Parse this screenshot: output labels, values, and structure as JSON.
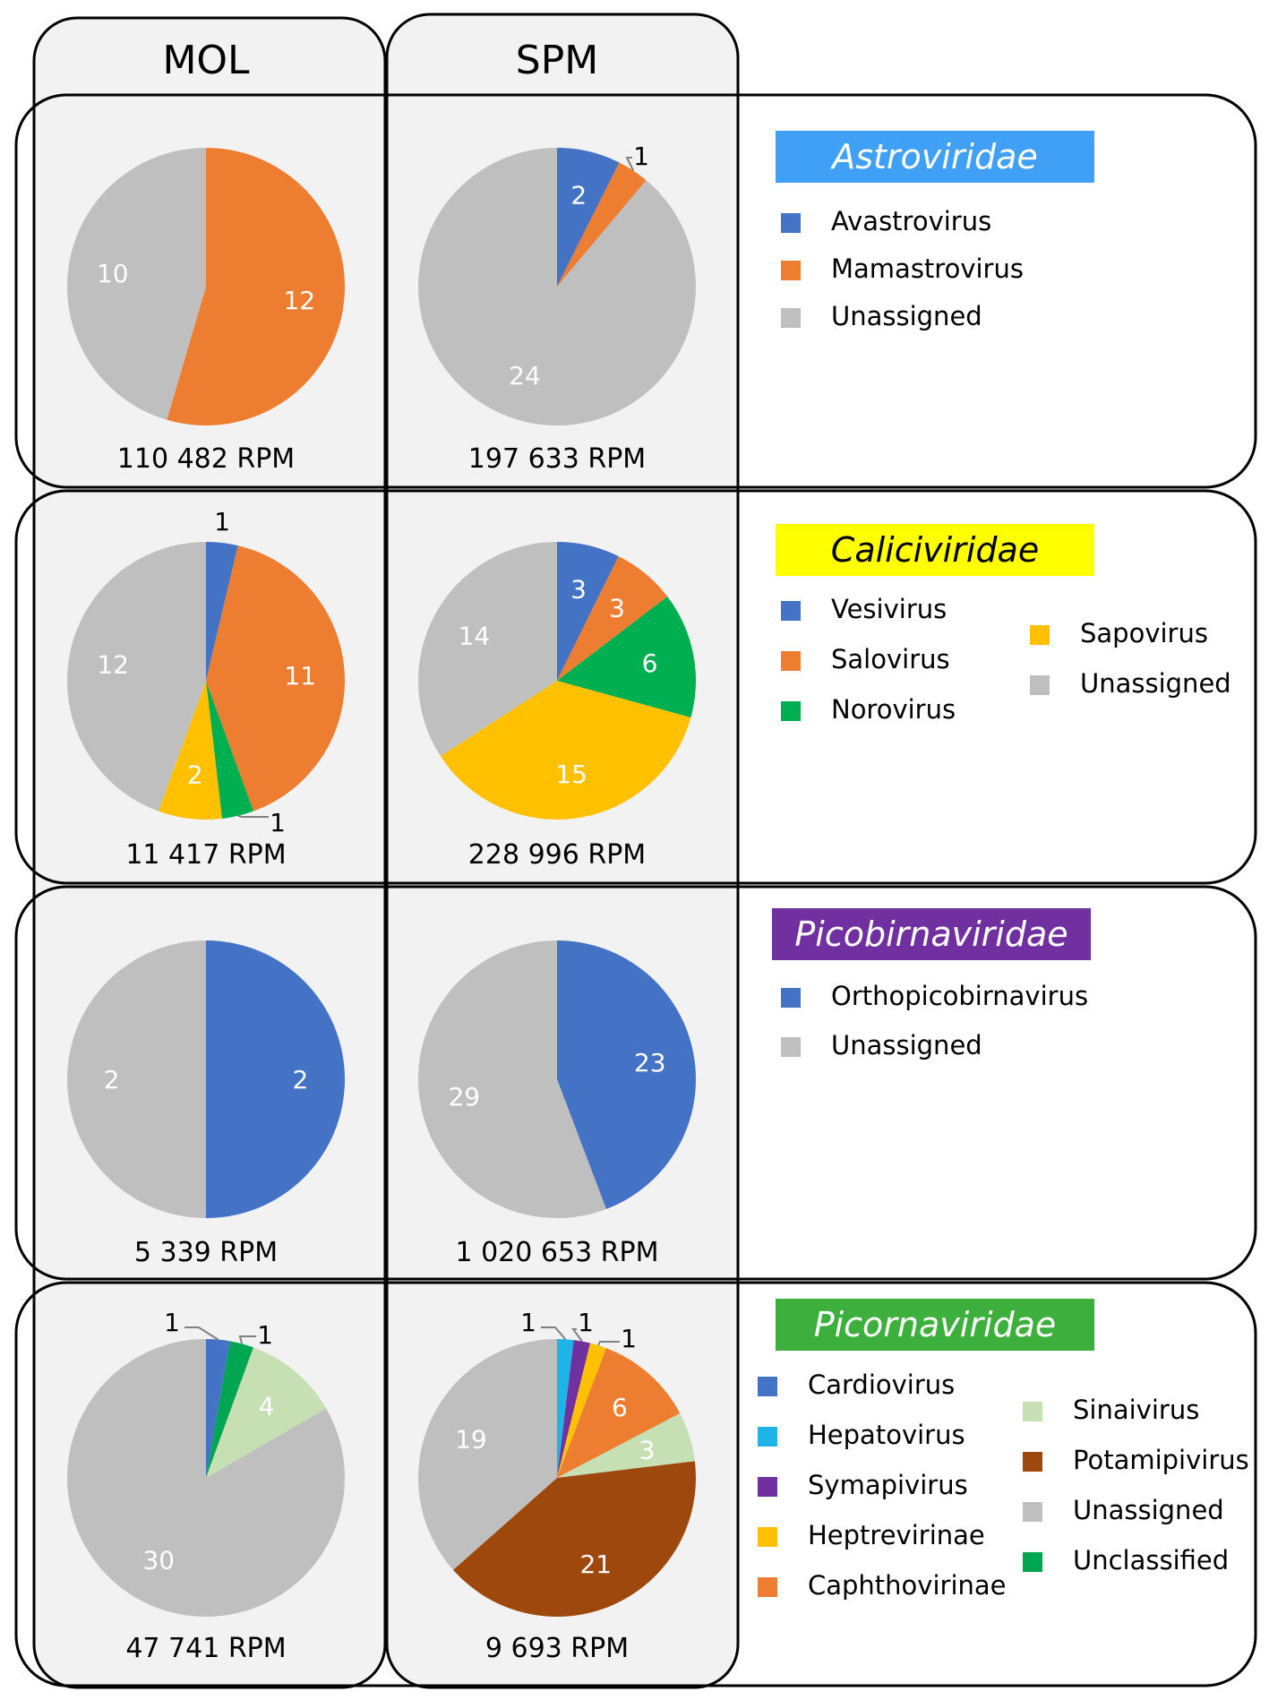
{
  "columns": [
    "MOL",
    "SPM"
  ],
  "colors": {
    "blue": "#4472C4",
    "orange": "#ED7D31",
    "gray": "#BFBFBF",
    "green": "#00B050",
    "yellow": "#FFC000",
    "cyan": "#1FB4E8",
    "purple": "#7030A0",
    "lightgreen": "#C6E0B4",
    "brown": "#9E480E",
    "darkgreen": "#00A652"
  },
  "chart_data": [
    {
      "type": "pie",
      "family": "Astroviridae",
      "family_color": "#3FA0F5",
      "family_text_color": "#ffffff",
      "legend": [
        {
          "label": "Avastrovirus",
          "color": "#4472C4"
        },
        {
          "label": "Mamastrovirus",
          "color": "#ED7D31"
        },
        {
          "label": "Unassigned",
          "color": "#BFBFBF"
        }
      ],
      "pies": [
        {
          "column": "MOL",
          "rpm": "110 482 RPM",
          "slices": [
            {
              "name": "Mamastrovirus",
              "value": 12,
              "color": "#ED7D31",
              "label": "12"
            },
            {
              "name": "Unassigned",
              "value": 10,
              "color": "#BFBFBF",
              "label": "10"
            }
          ]
        },
        {
          "column": "SPM",
          "rpm": "197 633 RPM",
          "slices": [
            {
              "name": "Avastrovirus",
              "value": 2,
              "color": "#4472C4",
              "label": "2"
            },
            {
              "name": "Mamastrovirus",
              "value": 1,
              "color": "#ED7D31",
              "label": "1",
              "outside": true
            },
            {
              "name": "Unassigned",
              "value": 24,
              "color": "#BFBFBF",
              "label": "24"
            }
          ]
        }
      ]
    },
    {
      "type": "pie",
      "family": "Caliciviridae",
      "family_color": "#FFFF00",
      "family_text_color": "#000000",
      "legend": [
        {
          "label": "Vesivirus",
          "color": "#4472C4"
        },
        {
          "label": "Salovirus",
          "color": "#ED7D31"
        },
        {
          "label": "Norovirus",
          "color": "#00B050"
        },
        {
          "label": "Sapovirus",
          "color": "#FFC000"
        },
        {
          "label": "Unassigned",
          "color": "#BFBFBF"
        }
      ],
      "pies": [
        {
          "column": "MOL",
          "rpm": "11 417 RPM",
          "slices": [
            {
              "name": "Vesivirus",
              "value": 1,
              "color": "#4472C4",
              "label": "1",
              "outside": true
            },
            {
              "name": "Salovirus",
              "value": 11,
              "color": "#ED7D31",
              "label": "11"
            },
            {
              "name": "Norovirus",
              "value": 1,
              "color": "#00B050",
              "label": "1",
              "outside": true
            },
            {
              "name": "Sapovirus",
              "value": 2,
              "color": "#FFC000",
              "label": "2"
            },
            {
              "name": "Unassigned",
              "value": 12,
              "color": "#BFBFBF",
              "label": "12"
            }
          ]
        },
        {
          "column": "SPM",
          "rpm": "228 996 RPM",
          "slices": [
            {
              "name": "Vesivirus",
              "value": 3,
              "color": "#4472C4",
              "label": "3"
            },
            {
              "name": "Salovirus",
              "value": 3,
              "color": "#ED7D31",
              "label": "3"
            },
            {
              "name": "Norovirus",
              "value": 6,
              "color": "#00B050",
              "label": "6"
            },
            {
              "name": "Sapovirus",
              "value": 15,
              "color": "#FFC000",
              "label": "15"
            },
            {
              "name": "Unassigned",
              "value": 14,
              "color": "#BFBFBF",
              "label": "14"
            }
          ]
        }
      ]
    },
    {
      "type": "pie",
      "family": "Picobirnaviridae",
      "family_color": "#7030A0",
      "family_text_color": "#ffffff",
      "legend": [
        {
          "label": "Orthopicobirnavirus",
          "color": "#4472C4"
        },
        {
          "label": "Unassigned",
          "color": "#BFBFBF"
        }
      ],
      "pies": [
        {
          "column": "MOL",
          "rpm": "5 339 RPM",
          "slices": [
            {
              "name": "Orthopicobirnavirus",
              "value": 2,
              "color": "#4472C4",
              "label": "2"
            },
            {
              "name": "Unassigned",
              "value": 2,
              "color": "#BFBFBF",
              "label": "2"
            }
          ]
        },
        {
          "column": "SPM",
          "rpm": "1 020 653 RPM",
          "slices": [
            {
              "name": "Orthopicobirnavirus",
              "value": 23,
              "color": "#4472C4",
              "label": "23"
            },
            {
              "name": "Unassigned",
              "value": 29,
              "color": "#BFBFBF",
              "label": "29"
            }
          ]
        }
      ]
    },
    {
      "type": "pie",
      "family": "Picornaviridae",
      "family_color": "#3CAF3C",
      "family_text_color": "#ffffff",
      "legend": [
        {
          "label": "Cardiovirus",
          "color": "#4472C4"
        },
        {
          "label": "Hepatovirus",
          "color": "#1FB4E8"
        },
        {
          "label": "Symapivirus",
          "color": "#7030A0"
        },
        {
          "label": "Heptrevirinae",
          "color": "#FFC000"
        },
        {
          "label": "Caphthovirinae",
          "color": "#ED7D31"
        },
        {
          "label": "Sinaivirus",
          "color": "#C6E0B4"
        },
        {
          "label": "Potamipivirus",
          "color": "#9E480E"
        },
        {
          "label": "Unassigned",
          "color": "#BFBFBF"
        },
        {
          "label": "Unclassified",
          "color": "#00A652"
        }
      ],
      "pies": [
        {
          "column": "MOL",
          "rpm": "47 741 RPM",
          "slices": [
            {
              "name": "Cardiovirus",
              "value": 1,
              "color": "#4472C4",
              "label": "1",
              "outside": true
            },
            {
              "name": "Unclassified",
              "value": 1,
              "color": "#00A652",
              "label": "1",
              "outside": true
            },
            {
              "name": "Sinaivirus",
              "value": 4,
              "color": "#C6E0B4",
              "label": "4"
            },
            {
              "name": "Unassigned",
              "value": 30,
              "color": "#BFBFBF",
              "label": "30"
            }
          ]
        },
        {
          "column": "SPM",
          "rpm": "9 693 RPM",
          "slices": [
            {
              "name": "Hepatovirus",
              "value": 1,
              "color": "#1FB4E8",
              "label": "1",
              "outside": true
            },
            {
              "name": "Symapivirus",
              "value": 1,
              "color": "#7030A0",
              "label": "1",
              "outside": true
            },
            {
              "name": "Heptrevirinae",
              "value": 1,
              "color": "#FFC000",
              "label": "1",
              "outside": true
            },
            {
              "name": "Caphthovirinae",
              "value": 6,
              "color": "#ED7D31",
              "label": "6"
            },
            {
              "name": "Sinaivirus",
              "value": 3,
              "color": "#C6E0B4",
              "label": "3"
            },
            {
              "name": "Potamipivirus",
              "value": 21,
              "color": "#9E480E",
              "label": "21"
            },
            {
              "name": "Unassigned",
              "value": 19,
              "color": "#BFBFBF",
              "label": "19"
            }
          ]
        }
      ]
    }
  ]
}
